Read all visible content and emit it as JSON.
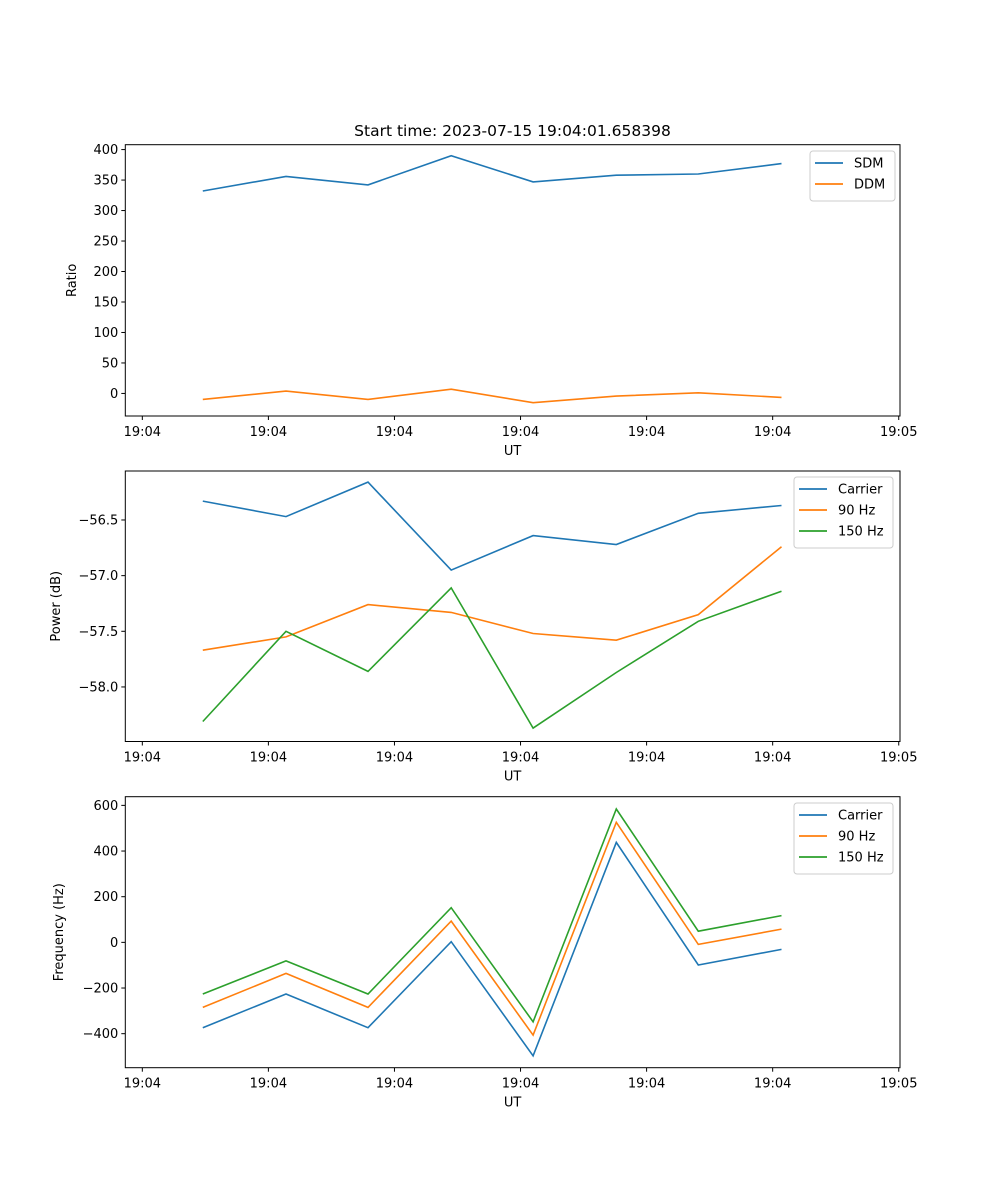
{
  "figure": {
    "title": "Start time: 2023-07-15 19:04:01.658398"
  },
  "colors": {
    "blue": "#1f77b4",
    "orange": "#ff7f0e",
    "green": "#2ca02c"
  },
  "chart_data": [
    {
      "type": "line",
      "title": "Start time: 2023-07-15 19:04:01.658398",
      "xlabel": "UT",
      "ylabel": "Ratio",
      "x_unit": "seconds after first x tick",
      "x": [
        4.8,
        11.4,
        17.9,
        24.5,
        31.0,
        37.6,
        44.1,
        50.7
      ],
      "xlim": [
        -1.35,
        60.1
      ],
      "xticks": [
        0,
        10,
        20,
        30,
        40,
        50,
        60
      ],
      "xtick_labels": [
        "19:04",
        "19:04",
        "19:04",
        "19:04",
        "19:04",
        "19:04",
        "19:05"
      ],
      "ylim": [
        -37,
        408
      ],
      "yticks": [
        0,
        50,
        100,
        150,
        200,
        250,
        300,
        350,
        400
      ],
      "ytick_labels": [
        "0",
        "50",
        "100",
        "150",
        "200",
        "250",
        "300",
        "350",
        "400"
      ],
      "legend": "top-right",
      "series": [
        {
          "name": "SDM",
          "color": "#1f77b4",
          "values": [
            332,
            356,
            342,
            390,
            347,
            358,
            360,
            377
          ]
        },
        {
          "name": "DDM",
          "color": "#ff7f0e",
          "values": [
            -9.8,
            3.8,
            -9.8,
            7.0,
            -15.2,
            -4.4,
            1.1,
            -6.5
          ]
        }
      ]
    },
    {
      "type": "line",
      "title": "",
      "xlabel": "UT",
      "ylabel": "Power (dB)",
      "x_unit": "seconds after first x tick",
      "x": [
        4.8,
        11.4,
        17.9,
        24.5,
        31.0,
        37.6,
        44.1,
        50.7
      ],
      "xlim": [
        -1.35,
        60.1
      ],
      "xticks": [
        0,
        10,
        20,
        30,
        40,
        50,
        60
      ],
      "xtick_labels": [
        "19:04",
        "19:04",
        "19:04",
        "19:04",
        "19:04",
        "19:04",
        "19:05"
      ],
      "ylim": [
        -58.49,
        -56.06
      ],
      "yticks": [
        -58.0,
        -57.5,
        -57.0,
        -56.5
      ],
      "ytick_labels": [
        "−58.0",
        "−57.5",
        "−57.0",
        "−56.5"
      ],
      "legend": "top-right",
      "series": [
        {
          "name": "Carrier",
          "color": "#1f77b4",
          "values": [
            -56.33,
            -56.47,
            -56.16,
            -56.95,
            -56.64,
            -56.72,
            -56.44,
            -56.37
          ]
        },
        {
          "name": "90 Hz",
          "color": "#ff7f0e",
          "values": [
            -57.67,
            -57.55,
            -57.26,
            -57.33,
            -57.52,
            -57.58,
            -57.35,
            -56.74
          ]
        },
        {
          "name": "150 Hz",
          "color": "#2ca02c",
          "values": [
            -58.31,
            -57.5,
            -57.86,
            -57.11,
            -58.37,
            -57.87,
            -57.41,
            -57.14
          ]
        }
      ]
    },
    {
      "type": "line",
      "title": "",
      "xlabel": "UT",
      "ylabel": "Frequency (Hz)",
      "x_unit": "seconds after first x tick",
      "x": [
        4.8,
        11.4,
        17.9,
        24.5,
        31.0,
        37.6,
        44.1,
        50.7
      ],
      "xlim": [
        -1.35,
        60.1
      ],
      "xticks": [
        0,
        10,
        20,
        30,
        40,
        50,
        60
      ],
      "xtick_labels": [
        "19:04",
        "19:04",
        "19:04",
        "19:04",
        "19:04",
        "19:04",
        "19:05"
      ],
      "ylim": [
        -549,
        638
      ],
      "yticks": [
        -400,
        -200,
        0,
        200,
        400,
        600
      ],
      "ytick_labels": [
        "−400",
        "−200",
        "0",
        "200",
        "400",
        "600"
      ],
      "legend": "top-right",
      "series": [
        {
          "name": "Carrier",
          "color": "#1f77b4",
          "values": [
            -374,
            -226,
            -374,
            3,
            -497,
            438,
            -99,
            -31
          ]
        },
        {
          "name": "90 Hz",
          "color": "#ff7f0e",
          "values": [
            -285,
            -136,
            -285,
            93,
            -406,
            526,
            -9,
            58
          ]
        },
        {
          "name": "150 Hz",
          "color": "#2ca02c",
          "values": [
            -226,
            -81,
            -226,
            152,
            -348,
            584,
            49,
            117
          ]
        }
      ]
    }
  ]
}
